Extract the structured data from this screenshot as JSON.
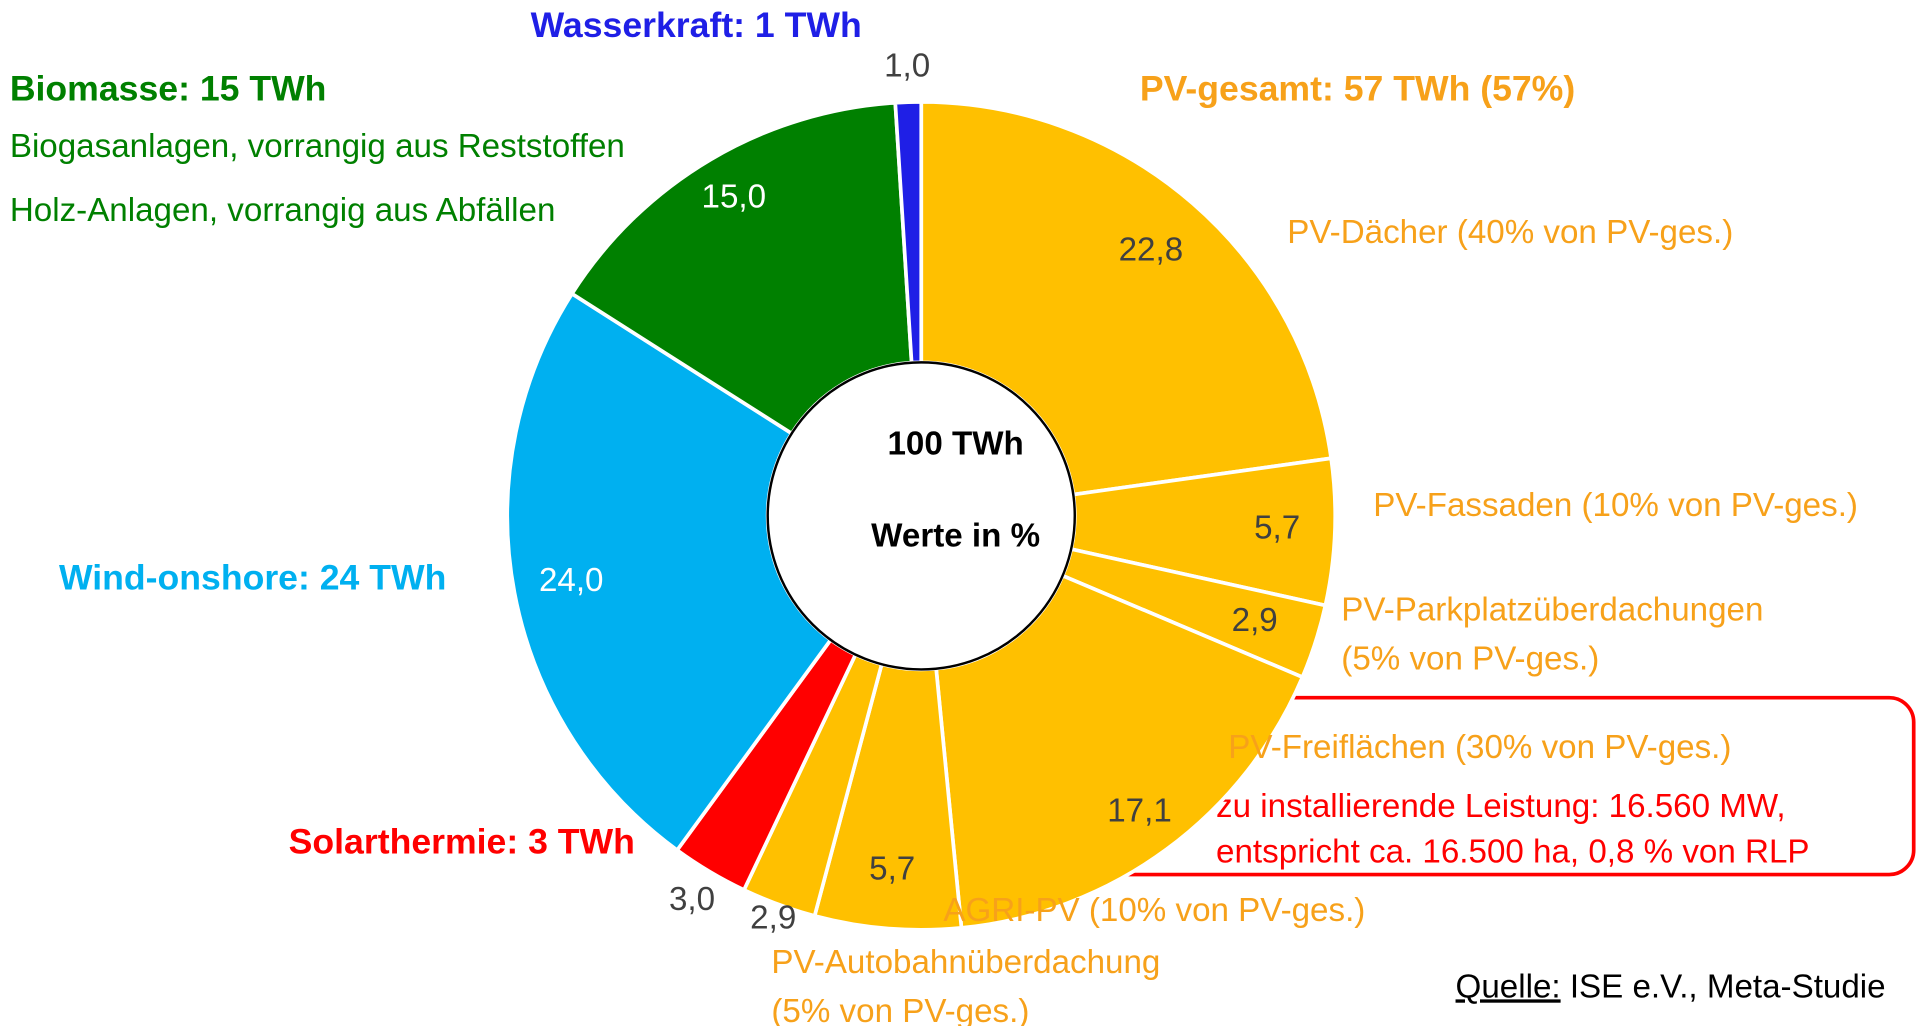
{
  "chart_data": {
    "type": "pie",
    "categories": [
      [
        "PV-Dächer (40% von PV-ges.)"
      ],
      [
        "PV-Fassaden (10% von PV-ges.)"
      ],
      [
        "PV-Parkplatzüberdachungen",
        "(5% von PV-ges.)"
      ],
      [
        "PV-Freiflächen (30% von PV-ges.)"
      ],
      [
        "AGRI-PV (10% von PV-ges.)"
      ],
      [
        "PV-Autobahnüberdachung",
        "(5% von PV-ges.)"
      ],
      [
        "Solarthermie: 3 TWh"
      ],
      [
        "Wind-onshore: 24 TWh"
      ],
      [
        "Biomasse: 15 TWh"
      ],
      [
        "Wasserkraft: 1 TWh"
      ]
    ],
    "values": [
      22.8,
      5.7,
      2.9,
      17.1,
      5.7,
      2.9,
      3.0,
      24.0,
      15.0,
      1.0
    ],
    "value_labels": [
      "22,8",
      "5,7",
      "2,9",
      "17,1",
      "5,7",
      "2,9",
      "3,0",
      "24,0",
      "15,0",
      "1,0"
    ],
    "colors": [
      "#FFC000",
      "#FFC000",
      "#FFC000",
      "#FFC000",
      "#FFC000",
      "#FFC000",
      "#FF0000",
      "#00B0F0",
      "#008000",
      "#1F1FE6"
    ],
    "annotations": {
      "pv_total": "PV-gesamt: 57 TWh (57%)",
      "biomass_lines": [
        "Biogasanlagen, vorrangig aus Reststoffen",
        "Holz-Anlagen, vorrangig aus Abfällen"
      ],
      "center": [
        "100 TWh",
        "Werte in %"
      ],
      "highlight": [
        "zu installierende Leistung: 16.560 MW,",
        "entspricht ca. 16.500 ha, 0,8 % von RLP"
      ],
      "source_label": "Quelle:",
      "source": " ISE e.V., Meta-Studie"
    }
  }
}
